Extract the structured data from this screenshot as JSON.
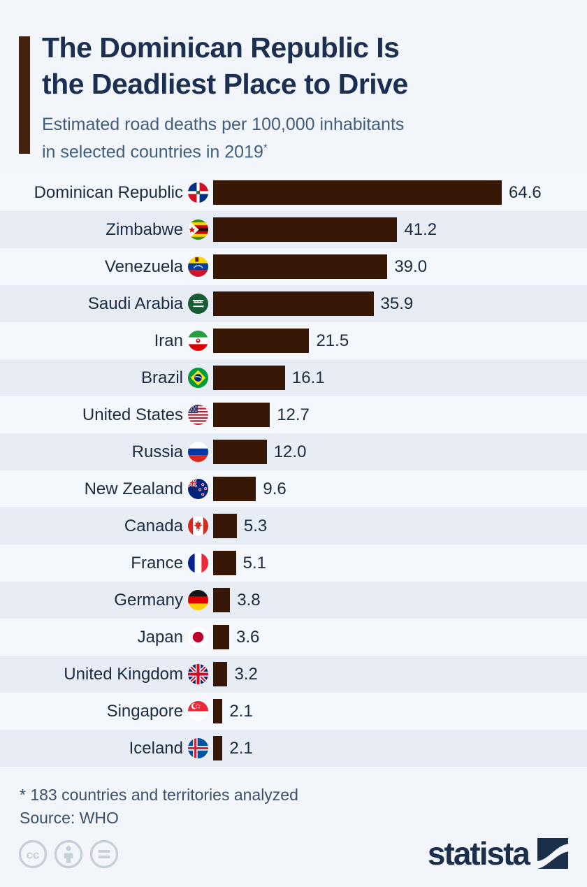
{
  "header": {
    "title_line1": "The Dominican Republic Is",
    "title_line2": "the Deadliest Place to Drive",
    "subtitle_line1": "Estimated road deaths per 100,000 inhabitants",
    "subtitle_line2": "in selected countries in 2019",
    "footnote_marker": "*"
  },
  "chart_data": {
    "type": "bar",
    "orientation": "horizontal",
    "title": "The Dominican Republic Is the Deadliest Place to Drive",
    "subtitle": "Estimated road deaths per 100,000 inhabitants in selected countries in 2019*",
    "xlabel": "",
    "ylabel": "",
    "xlim": [
      0,
      64.6
    ],
    "grid": false,
    "legend": false,
    "bar_color": "#371807",
    "categories": [
      "Dominican Republic",
      "Zimbabwe",
      "Venezuela",
      "Saudi Arabia",
      "Iran",
      "Brazil",
      "United States",
      "Russia",
      "New Zealand",
      "Canada",
      "France",
      "Germany",
      "Japan",
      "United Kingdom",
      "Singapore",
      "Iceland"
    ],
    "values": [
      64.6,
      41.2,
      39.0,
      35.9,
      21.5,
      16.1,
      12.7,
      12.0,
      9.6,
      5.3,
      5.1,
      3.8,
      3.6,
      3.2,
      2.1,
      2.1
    ],
    "rows": [
      {
        "country": "Dominican Republic",
        "value": 64.6,
        "value_label": "64.6",
        "flag": "dominican-republic-flag-icon"
      },
      {
        "country": "Zimbabwe",
        "value": 41.2,
        "value_label": "41.2",
        "flag": "zimbabwe-flag-icon"
      },
      {
        "country": "Venezuela",
        "value": 39.0,
        "value_label": "39.0",
        "flag": "venezuela-flag-icon"
      },
      {
        "country": "Saudi Arabia",
        "value": 35.9,
        "value_label": "35.9",
        "flag": "saudi-arabia-flag-icon"
      },
      {
        "country": "Iran",
        "value": 21.5,
        "value_label": "21.5",
        "flag": "iran-flag-icon"
      },
      {
        "country": "Brazil",
        "value": 16.1,
        "value_label": "16.1",
        "flag": "brazil-flag-icon"
      },
      {
        "country": "United States",
        "value": 12.7,
        "value_label": "12.7",
        "flag": "united-states-flag-icon"
      },
      {
        "country": "Russia",
        "value": 12.0,
        "value_label": "12.0",
        "flag": "russia-flag-icon"
      },
      {
        "country": "New Zealand",
        "value": 9.6,
        "value_label": "9.6",
        "flag": "new-zealand-flag-icon"
      },
      {
        "country": "Canada",
        "value": 5.3,
        "value_label": "5.3",
        "flag": "canada-flag-icon"
      },
      {
        "country": "France",
        "value": 5.1,
        "value_label": "5.1",
        "flag": "france-flag-icon"
      },
      {
        "country": "Germany",
        "value": 3.8,
        "value_label": "3.8",
        "flag": "germany-flag-icon"
      },
      {
        "country": "Japan",
        "value": 3.6,
        "value_label": "3.6",
        "flag": "japan-flag-icon"
      },
      {
        "country": "United Kingdom",
        "value": 3.2,
        "value_label": "3.2",
        "flag": "united-kingdom-flag-icon"
      },
      {
        "country": "Singapore",
        "value": 2.1,
        "value_label": "2.1",
        "flag": "singapore-flag-icon"
      },
      {
        "country": "Iceland",
        "value": 2.1,
        "value_label": "2.1",
        "flag": "iceland-flag-icon"
      }
    ]
  },
  "footer": {
    "footnote": "* 183 countries and territories analyzed",
    "source": "Source: WHO"
  },
  "branding": {
    "logo_text": "statista",
    "cc_glyph": "cc",
    "license_icons": [
      "cc-icon",
      "attribution-icon",
      "equal-icon"
    ]
  },
  "colors": {
    "background": "#f2f5fa",
    "row_light": "#f4f7fb",
    "row_dark": "#e8ecf4",
    "bar": "#371807",
    "accent_bar": "#44220e",
    "title": "#1b3051",
    "subtitle": "#3f5d7d",
    "label_text": "#1a2c42",
    "footnote_text": "#3a5069",
    "logo_navy": "#1b2e4a",
    "cc_gray": "#c7cfda"
  }
}
